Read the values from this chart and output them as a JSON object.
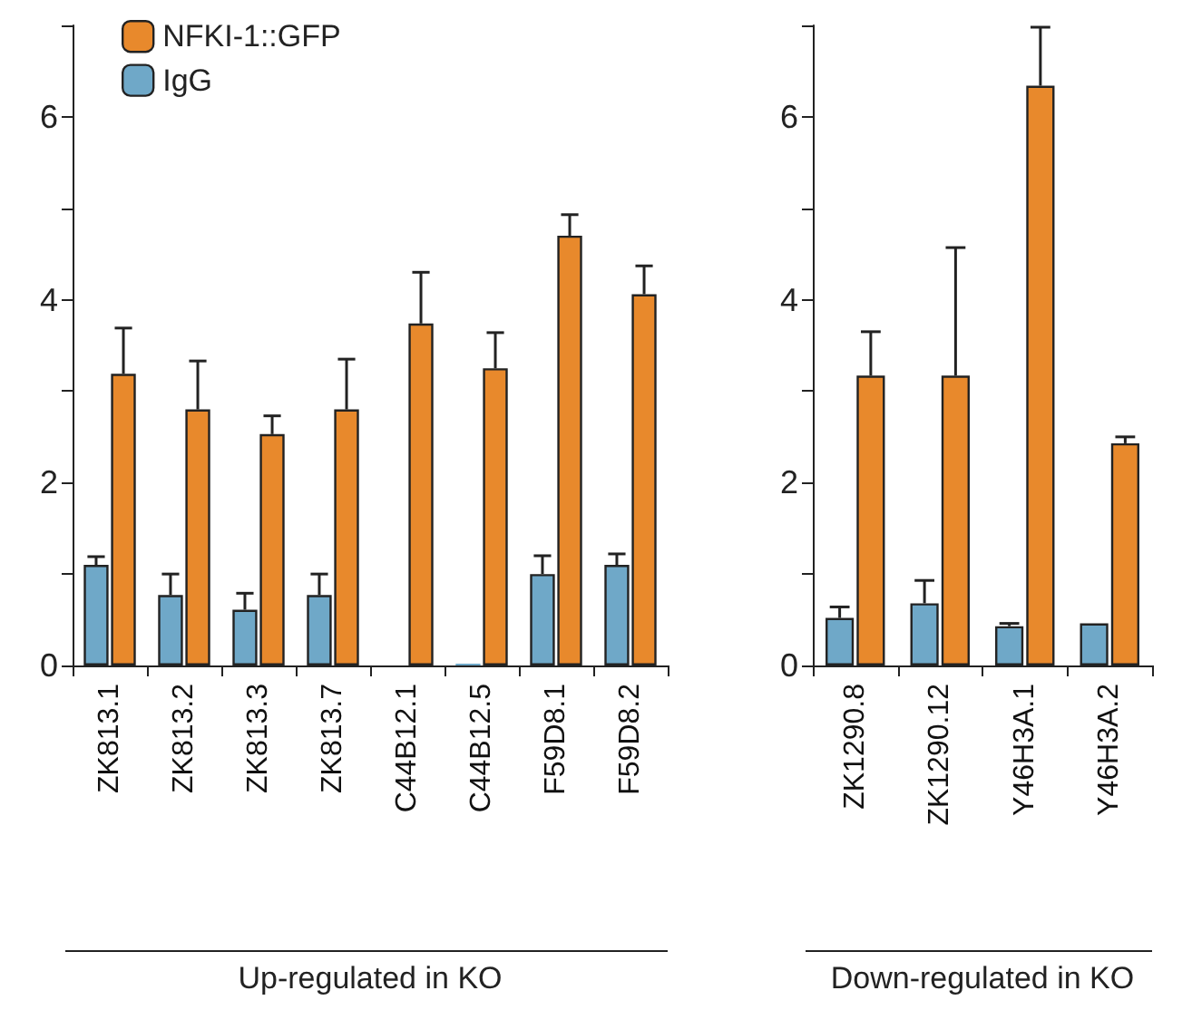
{
  "chart_data": [
    {
      "type": "bar",
      "xlabel": "Up-regulated in KO",
      "categories": [
        "ZK813.1",
        "ZK813.2",
        "ZK813.3",
        "ZK813.7",
        "C44B12.1",
        "C44B12.5",
        "F59D8.1",
        "F59D8.2"
      ],
      "series": [
        {
          "name": "IgG",
          "color": "#6fa8c8",
          "values": [
            1.1,
            0.77,
            0.61,
            0.77,
            null,
            0.02,
            1.0,
            1.1
          ],
          "errors": [
            [
              1.1,
              1.19
            ],
            [
              0.77,
              1.0
            ],
            [
              0.61,
              0.79
            ],
            [
              0.77,
              1.0
            ],
            null,
            null,
            [
              1.0,
              1.2
            ],
            [
              1.1,
              1.22
            ]
          ]
        },
        {
          "name": "NFKI-1::GFP",
          "color": "#e8892c",
          "values": [
            3.19,
            2.8,
            2.53,
            2.8,
            3.74,
            3.25,
            4.7,
            4.06
          ],
          "errors": [
            [
              3.19,
              3.69
            ],
            [
              2.8,
              3.33
            ],
            [
              2.53,
              2.73
            ],
            [
              2.8,
              3.35
            ],
            [
              3.74,
              4.3
            ],
            [
              3.25,
              3.64
            ],
            [
              4.7,
              4.93
            ],
            [
              4.06,
              4.37
            ]
          ]
        }
      ],
      "ylim": [
        0,
        7
      ],
      "yticks": [
        0,
        {
          "value": 1,
          "label": null
        },
        2,
        {
          "value": 3,
          "label": null
        },
        4,
        {
          "value": 5,
          "label": null
        },
        6,
        {
          "value": 7,
          "label": null
        }
      ],
      "grid": false,
      "legend": "top left"
    },
    {
      "type": "bar",
      "xlabel": "Down-regulated in KO",
      "categories": [
        "ZK1290.8",
        "ZK1290.12",
        "Y46H3A.1",
        "Y46H3A.2"
      ],
      "series": [
        {
          "color": "#6fa8c8",
          "values": [
            0.52,
            0.68,
            0.43,
            0.46
          ],
          "errors": [
            [
              0.52,
              0.64
            ],
            [
              0.68,
              0.93
            ],
            [
              0.43,
              0.46
            ],
            null
          ]
        },
        {
          "color": "#e8892c",
          "values": [
            3.17,
            3.17,
            6.34,
            2.43
          ],
          "errors": [
            [
              3.17,
              3.65
            ],
            [
              3.17,
              4.57
            ],
            [
              6.34,
              6.98
            ],
            [
              2.43,
              2.5
            ]
          ]
        }
      ],
      "ylim": [
        0,
        7
      ],
      "yticks": [
        0,
        {
          "value": 1,
          "label": null
        },
        2,
        {
          "value": 3,
          "label": null
        },
        4,
        {
          "value": 5,
          "label": null
        },
        6,
        {
          "value": 7,
          "label": null
        }
      ],
      "grid": false,
      "legend": false
    }
  ]
}
